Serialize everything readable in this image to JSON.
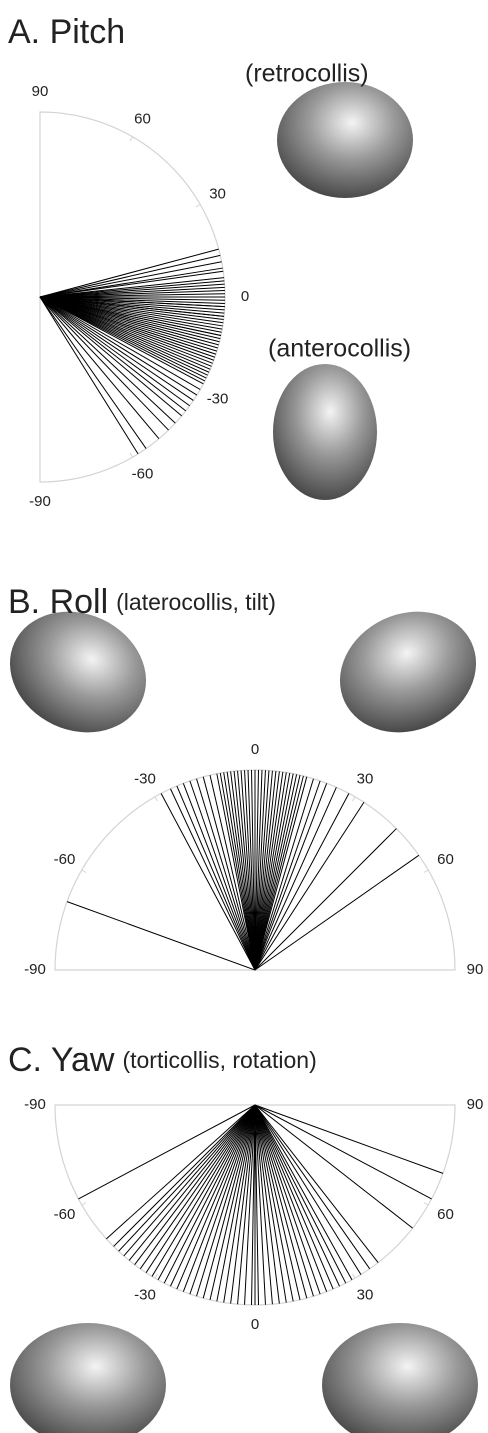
{
  "chart_data": [
    {
      "type": "radial",
      "title": "A. Pitch",
      "annotations": [
        "(retrocollis)",
        "(anterocollis)"
      ],
      "ticks": [
        90,
        60,
        30,
        0,
        -30,
        -60,
        -90
      ],
      "color": "#000000",
      "values": [
        15,
        13,
        11,
        9,
        8,
        6,
        5,
        4,
        3,
        2,
        1,
        0,
        -1,
        -2,
        -3,
        -3,
        -4,
        -5,
        -6,
        -6,
        -7,
        -8,
        -9,
        -10,
        -11,
        -12,
        -12,
        -13,
        -14,
        -15,
        -16,
        -17,
        -18,
        -18,
        -19,
        -20,
        -21,
        -22,
        -23,
        -24,
        -25,
        -26,
        -27,
        -28,
        -30,
        -32,
        -34,
        -36,
        -38,
        -40,
        -43,
        -46,
        -50,
        -55,
        -58
      ]
    },
    {
      "type": "radial",
      "title": "B. Roll",
      "subtitle": "(laterocollis, tilt)",
      "ticks": [
        -90,
        -60,
        -30,
        0,
        30,
        60,
        90
      ],
      "color": "#000000",
      "values": [
        -70,
        -28,
        -25,
        -23,
        -21,
        -19,
        -17,
        -15,
        -13,
        -11,
        -10,
        -9,
        -8,
        -7,
        -6,
        -5,
        -4,
        -3,
        -2,
        -1,
        0,
        1,
        2,
        3,
        4,
        5,
        6,
        7,
        8,
        9,
        10,
        11,
        12,
        13,
        14,
        15,
        17,
        19,
        21,
        24,
        28,
        33,
        45,
        55
      ]
    },
    {
      "type": "radial",
      "title": "C. Yaw",
      "subtitle": "(torticollis, rotation)",
      "ticks": [
        -90,
        -60,
        -30,
        0,
        30,
        60,
        90
      ],
      "color": "#000000",
      "values": [
        -62,
        -48,
        -45,
        -43,
        -41,
        -39,
        -37,
        -35,
        -33,
        -31,
        -29,
        -27,
        -25,
        -23,
        -21,
        -19,
        -17,
        -15,
        -13,
        -11,
        -9,
        -7,
        -5,
        -3,
        -1,
        0,
        1,
        3,
        5,
        7,
        9,
        11,
        13,
        15,
        17,
        19,
        21,
        23,
        25,
        27,
        29,
        32,
        35,
        38,
        52,
        62,
        70
      ]
    }
  ]
}
